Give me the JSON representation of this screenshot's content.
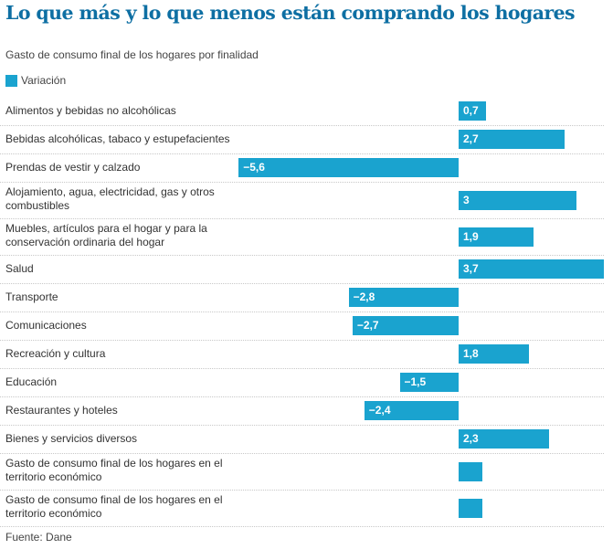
{
  "title": "Lo que más y lo que menos están comprando los hogares",
  "subtitle": "Gasto de consumo final de los hogares por finalidad",
  "legend": {
    "label": "Variación",
    "color": "#1aa3cf"
  },
  "source": "Fuente: Dane",
  "chart_data": {
    "type": "bar",
    "orientation": "horizontal",
    "title": "Lo que más y lo que menos están comprando los hogares",
    "subtitle": "Gasto de consumo final de los hogares por finalidad",
    "xlabel": "",
    "ylabel": "",
    "xlim": [
      -5.6,
      3.7
    ],
    "grid": false,
    "legend_position": "top-left",
    "series": [
      {
        "name": "Variación",
        "color": "#1aa3cf",
        "values": [
          0.7,
          2.7,
          -5.6,
          3,
          1.9,
          3.7,
          -2.8,
          -2.7,
          1.8,
          -1.5,
          -2.4,
          2.3,
          0.6,
          0.6
        ]
      }
    ],
    "categories": [
      "Alimentos y bebidas no alcohólicas",
      "Bebidas alcohólicas, tabaco y estupefacientes",
      "Prendas de vestir y calzado",
      "Alojamiento, agua, electricidad, gas y otros combustibles",
      "Muebles, artículos para el hogar y para la conservación ordinaria del hogar",
      "Salud",
      "Transporte",
      "Comunicaciones",
      "Recreación y cultura",
      "Educación",
      "Restaurantes y hoteles",
      "Bienes y servicios diversos",
      "Gasto de consumo final de los hogares en el territorio económico",
      "Gasto de consumo final de los hogares en el territorio económico"
    ],
    "data_labels": [
      "0,7",
      "2,7",
      "−5,6",
      "3",
      "1,9",
      "3,7",
      "−2,8",
      "−2,7",
      "1,8",
      "−1,5",
      "−2,4",
      "2,3",
      "",
      ""
    ],
    "source": "Fuente: Dane"
  }
}
